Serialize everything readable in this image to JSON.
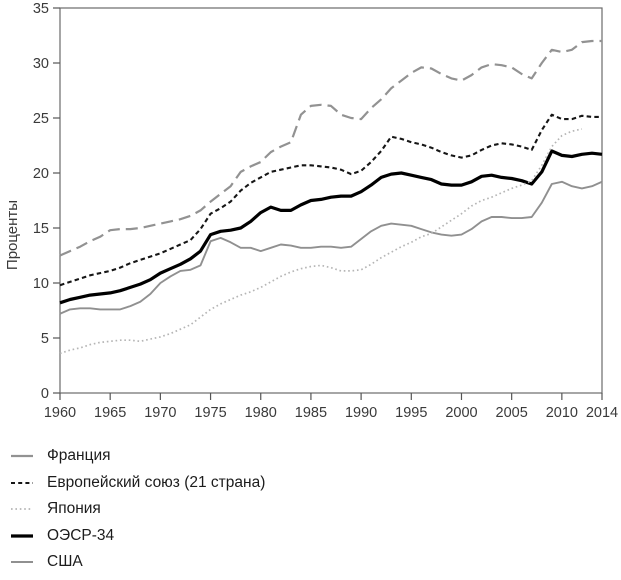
{
  "chart_data": {
    "type": "line",
    "title": "",
    "ylabel": "Проценты",
    "xlabel": "",
    "ylim": [
      0,
      35
    ],
    "xlim": [
      1960,
      2014
    ],
    "y_ticks": [
      0,
      5,
      10,
      15,
      20,
      25,
      30,
      35
    ],
    "x_ticks": [
      1960,
      1965,
      1970,
      1975,
      1980,
      1985,
      1990,
      1995,
      2000,
      2005,
      2010,
      2014
    ],
    "grid": false,
    "legend_position": "below-left",
    "axis_color": "#6a6a6a",
    "tick_color": "#555555",
    "series": [
      {
        "id": "france",
        "name": "Франция",
        "color": "#929292",
        "style": "long-dash",
        "width": 2.2,
        "dash": "12 6",
        "swatch_dash": "",
        "z": 1,
        "start_year": 1960,
        "values": [
          12.5,
          12.9,
          13.3,
          13.8,
          14.2,
          14.8,
          14.9,
          14.9,
          15.0,
          15.2,
          15.4,
          15.6,
          15.8,
          16.1,
          16.6,
          17.4,
          18.1,
          18.8,
          20.1,
          20.6,
          21.0,
          21.9,
          22.4,
          22.8,
          25.3,
          26.1,
          26.2,
          26.1,
          25.3,
          25.0,
          24.9,
          25.9,
          26.7,
          27.7,
          28.4,
          29.1,
          29.6,
          29.5,
          29.0,
          28.6,
          28.4,
          28.9,
          29.6,
          29.9,
          29.8,
          29.6,
          29.0,
          28.6,
          30.0,
          31.2,
          31.0,
          31.2,
          31.9,
          32.0,
          32.0
        ]
      },
      {
        "id": "eu21",
        "name": "Европейский союз (21 страна)",
        "color": "#161616",
        "style": "dash",
        "width": 2.1,
        "dash": "4.5 3.2",
        "swatch_dash": "4 3.2",
        "z": 2,
        "start_year": 1960,
        "values": [
          9.8,
          10.1,
          10.4,
          10.7,
          10.9,
          11.1,
          11.4,
          11.8,
          12.1,
          12.4,
          12.7,
          13.1,
          13.5,
          13.9,
          14.9,
          16.3,
          16.8,
          17.4,
          18.4,
          19.1,
          19.6,
          20.1,
          20.3,
          20.5,
          20.7,
          20.7,
          20.6,
          20.5,
          20.3,
          19.9,
          20.2,
          21.0,
          22.0,
          23.3,
          23.1,
          22.8,
          22.6,
          22.3,
          21.9,
          21.6,
          21.4,
          21.6,
          22.1,
          22.5,
          22.7,
          22.6,
          22.4,
          22.1,
          23.9,
          25.3,
          24.9,
          24.9,
          25.2,
          25.1,
          25.1
        ]
      },
      {
        "id": "japan",
        "name": "Япония",
        "color": "#b5b5b5",
        "style": "dotted",
        "width": 1.7,
        "dash": "1.6 2.8",
        "swatch_dash": "1.6 2.8",
        "z": 4,
        "start_year": 1960,
        "values": [
          3.6,
          3.9,
          4.1,
          4.4,
          4.6,
          4.7,
          4.8,
          4.8,
          4.7,
          4.9,
          5.1,
          5.4,
          5.8,
          6.2,
          6.9,
          7.6,
          8.1,
          8.5,
          8.9,
          9.2,
          9.6,
          10.1,
          10.6,
          11.0,
          11.3,
          11.5,
          11.6,
          11.4,
          11.1,
          11.1,
          11.2,
          11.7,
          12.3,
          12.8,
          13.3,
          13.7,
          14.2,
          14.5,
          15.1,
          15.7,
          16.3,
          17.0,
          17.5,
          17.8,
          18.2,
          18.6,
          18.9,
          19.3,
          20.7,
          22.4,
          23.4,
          23.8,
          24.0
        ]
      },
      {
        "id": "oecd34",
        "name": "ОЭСР-34",
        "color": "#000000",
        "style": "solid",
        "width": 3.2,
        "dash": "",
        "swatch_dash": "",
        "z": 3,
        "start_year": 1960,
        "values": [
          8.2,
          8.5,
          8.7,
          8.9,
          9.0,
          9.1,
          9.3,
          9.6,
          9.9,
          10.3,
          10.9,
          11.3,
          11.7,
          12.2,
          12.9,
          14.4,
          14.7,
          14.8,
          15.0,
          15.6,
          16.4,
          16.9,
          16.6,
          16.6,
          17.1,
          17.5,
          17.6,
          17.8,
          17.9,
          17.9,
          18.3,
          18.9,
          19.6,
          19.9,
          20.0,
          19.8,
          19.6,
          19.4,
          19.0,
          18.9,
          18.9,
          19.2,
          19.7,
          19.8,
          19.6,
          19.5,
          19.3,
          19.0,
          20.1,
          22.0,
          21.6,
          21.5,
          21.7,
          21.8,
          21.7
        ]
      },
      {
        "id": "usa",
        "name": "США",
        "color": "#909090",
        "style": "solid",
        "width": 1.9,
        "dash": "",
        "swatch_dash": "",
        "z": 0,
        "start_year": 1960,
        "values": [
          7.2,
          7.6,
          7.7,
          7.7,
          7.6,
          7.6,
          7.6,
          7.9,
          8.3,
          9.0,
          10.0,
          10.6,
          11.1,
          11.2,
          11.6,
          13.8,
          14.1,
          13.7,
          13.2,
          13.2,
          12.9,
          13.2,
          13.5,
          13.4,
          13.2,
          13.2,
          13.3,
          13.3,
          13.2,
          13.3,
          14.0,
          14.7,
          15.2,
          15.4,
          15.3,
          15.2,
          14.9,
          14.6,
          14.4,
          14.3,
          14.4,
          14.9,
          15.6,
          16.0,
          16.0,
          15.9,
          15.9,
          16.0,
          17.3,
          19.0,
          19.2,
          18.8,
          18.6,
          18.8,
          19.2
        ]
      }
    ]
  }
}
